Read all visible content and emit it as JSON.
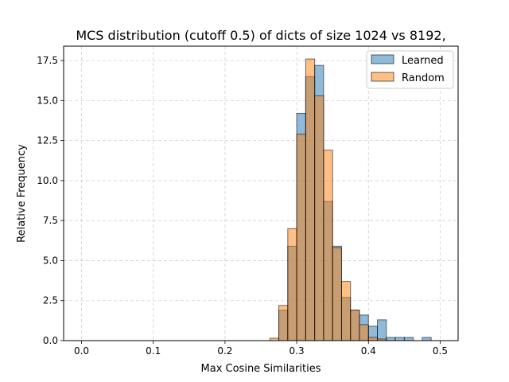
{
  "chart_data": {
    "type": "bar",
    "title": "MCS distribution (cutoff 0.5) of dicts of size 1024 vs 8192,",
    "xlabel": "Max Cosine Similarities",
    "ylabel": "Relative Frequency",
    "xlim": [
      -0.025,
      0.525
    ],
    "ylim": [
      0,
      18.4
    ],
    "xticks": [
      0.0,
      0.1,
      0.2,
      0.3,
      0.4,
      0.5
    ],
    "xtick_labels": [
      "0.0",
      "0.1",
      "0.2",
      "0.3",
      "0.4",
      "0.5"
    ],
    "yticks": [
      0.0,
      2.5,
      5.0,
      7.5,
      10.0,
      12.5,
      15.0,
      17.5
    ],
    "ytick_labels": [
      "0.0",
      "2.5",
      "5.0",
      "7.5",
      "10.0",
      "12.5",
      "15.0",
      "17.5"
    ],
    "bin_width": 0.0125,
    "grid": true,
    "legend_position": "top-right",
    "series": [
      {
        "name": "Learned",
        "color": "#1f77b4",
        "bins": [
          [
            0.275,
            1.9
          ],
          [
            0.2875,
            5.9
          ],
          [
            0.3,
            14.2
          ],
          [
            0.3125,
            16.5
          ],
          [
            0.325,
            17.2
          ],
          [
            0.3375,
            8.7
          ],
          [
            0.35,
            5.9
          ],
          [
            0.3625,
            2.7
          ],
          [
            0.375,
            1.9
          ],
          [
            0.3875,
            1.6
          ],
          [
            0.4,
            0.9
          ],
          [
            0.4125,
            1.3
          ],
          [
            0.425,
            0.2
          ],
          [
            0.4375,
            0.2
          ],
          [
            0.45,
            0.2
          ],
          [
            0.475,
            0.2
          ]
        ]
      },
      {
        "name": "Random",
        "color": "#ff7f0e",
        "bins": [
          [
            0.2625,
            0.15
          ],
          [
            0.275,
            2.2
          ],
          [
            0.2875,
            7.0
          ],
          [
            0.3,
            12.9
          ],
          [
            0.3125,
            17.6
          ],
          [
            0.325,
            15.3
          ],
          [
            0.3375,
            11.9
          ],
          [
            0.35,
            5.8
          ],
          [
            0.3625,
            3.7
          ],
          [
            0.375,
            1.9
          ],
          [
            0.3875,
            1.0
          ],
          [
            0.4,
            0.2
          ],
          [
            0.4125,
            0.1
          ]
        ]
      }
    ]
  }
}
